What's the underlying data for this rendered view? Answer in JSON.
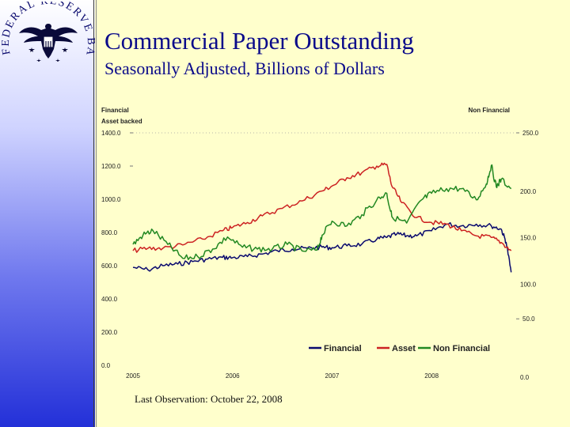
{
  "slide": {
    "title": "Commercial Paper Outstanding",
    "subtitle": "Seasonally Adjusted, Billions of Dollars",
    "footnote": "Last Observation: October 22, 2008"
  },
  "seal": {
    "text": "FEDERAL RESERVE BANK OF ST. LOUIS",
    "icon": "eagle-seal-icon"
  },
  "colors": {
    "title": "#0a0a8a",
    "financial": "#0a0a6e",
    "asset": "#cc2222",
    "non_financial": "#228822",
    "chart_bg": "#ffffcc"
  },
  "chart_data": {
    "type": "line",
    "left_axis_title": "Financial",
    "left_axis_subtitle": "Asset backed",
    "right_axis_title": "Non Financial",
    "left_ylim": [
      0,
      1400
    ],
    "right_ylim": [
      0,
      250
    ],
    "left_ticks": [
      "1400.0",
      "1200.0",
      "1000.0",
      "800.0",
      "600.0",
      "400.0",
      "200.0",
      "0.0"
    ],
    "right_ticks": [
      "250.0",
      "200.0",
      "150.0",
      "100.0",
      "50.0",
      "0.0"
    ],
    "x_ticks": [
      "2005",
      "2006",
      "2007",
      "2008"
    ],
    "x_range": [
      2005.0,
      2008.85
    ],
    "legend": [
      "Financial",
      "Asset",
      "Non Financial"
    ],
    "series": [
      {
        "name": "Financial",
        "axis": "left",
        "x": [
          2005.0,
          2005.15,
          2005.3,
          2005.45,
          2005.6,
          2005.75,
          2005.9,
          2006.0,
          2006.15,
          2006.3,
          2006.45,
          2006.6,
          2006.75,
          2006.9,
          2007.0,
          2007.15,
          2007.3,
          2007.45,
          2007.55,
          2007.65,
          2007.75,
          2007.85,
          2008.0,
          2008.15,
          2008.3,
          2008.45,
          2008.6,
          2008.7,
          2008.75,
          2008.8
        ],
        "values": [
          590,
          575,
          600,
          610,
          625,
          640,
          650,
          648,
          655,
          670,
          690,
          700,
          705,
          712,
          708,
          720,
          730,
          760,
          770,
          790,
          780,
          780,
          810,
          850,
          840,
          850,
          840,
          820,
          740,
          560
        ]
      },
      {
        "name": "Asset",
        "axis": "left",
        "x": [
          2005.0,
          2005.15,
          2005.3,
          2005.5,
          2005.7,
          2005.9,
          2006.0,
          2006.15,
          2006.3,
          2006.5,
          2006.7,
          2006.9,
          2007.0,
          2007.15,
          2007.3,
          2007.45,
          2007.55,
          2007.6,
          2007.7,
          2007.85,
          2008.0,
          2008.15,
          2008.3,
          2008.45,
          2008.6,
          2008.7,
          2008.8
        ],
        "values": [
          690,
          705,
          705,
          725,
          760,
          810,
          830,
          860,
          900,
          945,
          990,
          1050,
          1080,
          1130,
          1160,
          1200,
          1210,
          1080,
          980,
          890,
          860,
          850,
          810,
          780,
          770,
          740,
          690
        ]
      },
      {
        "name": "Non Financial",
        "axis": "right",
        "x": [
          2005.0,
          2005.1,
          2005.2,
          2005.35,
          2005.5,
          2005.65,
          2005.8,
          2005.95,
          2006.1,
          2006.25,
          2006.4,
          2006.55,
          2006.7,
          2006.85,
          2006.9,
          2007.0,
          2007.15,
          2007.3,
          2007.45,
          2007.55,
          2007.6,
          2007.75,
          2007.9,
          2008.0,
          2008.15,
          2008.3,
          2008.45,
          2008.55,
          2008.6,
          2008.65,
          2008.7,
          2008.8
        ],
        "values": [
          130,
          140,
          145,
          130,
          115,
          117,
          125,
          138,
          127,
          125,
          125,
          130,
          123,
          124,
          140,
          155,
          150,
          162,
          178,
          185,
          160,
          153,
          178,
          185,
          190,
          190,
          178,
          195,
          215,
          192,
          200,
          190
        ]
      }
    ]
  }
}
